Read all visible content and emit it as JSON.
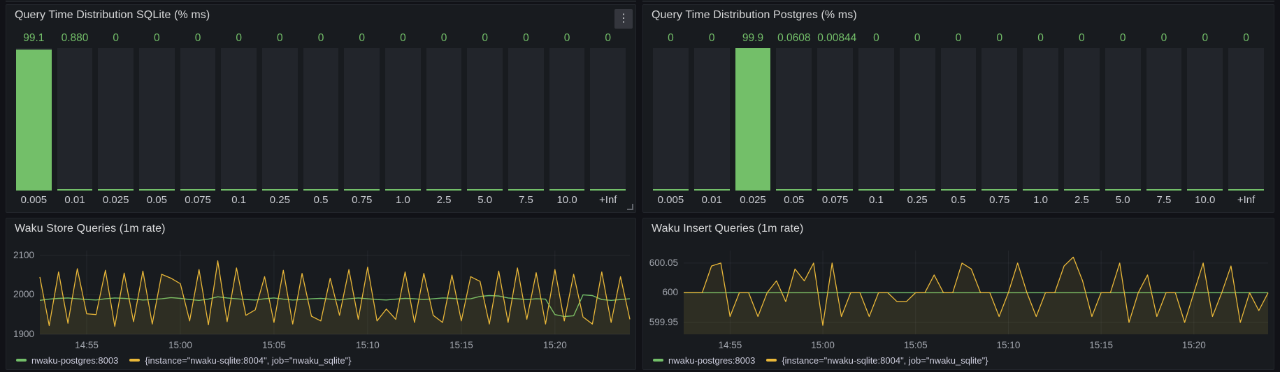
{
  "dashboard": {
    "background": "#111217",
    "panel_background": "#181b1f",
    "accent_green": "#73BF69",
    "accent_yellow": "#EAB839"
  },
  "icons": {
    "panel_menu": "⋮"
  },
  "chart_data": [
    {
      "id": "sqlite-histogram",
      "type": "bar",
      "title": "Query Time Distribution SQLite (% ms)",
      "unit": "%",
      "bar_color": "#73BF69",
      "ylim": [
        0,
        100
      ],
      "categories": [
        "0.005",
        "0.01",
        "0.025",
        "0.05",
        "0.075",
        "0.1",
        "0.25",
        "0.5",
        "0.75",
        "1.0",
        "2.5",
        "5.0",
        "7.5",
        "10.0",
        "+Inf"
      ],
      "values": [
        99.1,
        0.88,
        0,
        0,
        0,
        0,
        0,
        0,
        0,
        0,
        0,
        0,
        0,
        0,
        0
      ],
      "value_labels": [
        "99.1",
        "0.880",
        "0",
        "0",
        "0",
        "0",
        "0",
        "0",
        "0",
        "0",
        "0",
        "0",
        "0",
        "0",
        "0"
      ]
    },
    {
      "id": "postgres-histogram",
      "type": "bar",
      "title": "Query Time Distribution Postgres (% ms)",
      "unit": "%",
      "bar_color": "#73BF69",
      "ylim": [
        0,
        100
      ],
      "categories": [
        "0.005",
        "0.01",
        "0.025",
        "0.05",
        "0.075",
        "0.1",
        "0.25",
        "0.5",
        "0.75",
        "1.0",
        "2.5",
        "5.0",
        "7.5",
        "10.0",
        "+Inf"
      ],
      "values": [
        0,
        0,
        99.9,
        0.0608,
        0.00844,
        0,
        0,
        0,
        0,
        0,
        0,
        0,
        0,
        0,
        0
      ],
      "value_labels": [
        "0",
        "0",
        "99.9",
        "0.0608",
        "0.00844",
        "0",
        "0",
        "0",
        "0",
        "0",
        "0",
        "0",
        "0",
        "0",
        "0"
      ]
    },
    {
      "id": "waku-store-queries",
      "type": "line",
      "title": "Waku Store Queries (1m rate)",
      "grid": true,
      "legend_position": "bottom",
      "ylim": [
        1900,
        2112
      ],
      "y_ticks": [
        {
          "v": 2100,
          "label": "2100"
        },
        {
          "v": 2000,
          "label": "2000"
        },
        {
          "v": 1900,
          "label": "1900"
        }
      ],
      "x_ticks": {
        "indices": [
          5,
          15,
          25,
          35,
          45,
          55
        ],
        "labels": [
          "14:55",
          "15:00",
          "15:05",
          "15:10",
          "15:15",
          "15:20"
        ]
      },
      "series": [
        {
          "name": "nwaku-postgres:8003",
          "color": "#73BF69",
          "line_width": 1.4,
          "fill_opacity": 0.04,
          "values": [
            1986,
            1989,
            1991,
            1992,
            1990,
            1988,
            1987,
            1990,
            1992,
            1991,
            1989,
            1987,
            1988,
            1990,
            1993,
            1991,
            1988,
            1986,
            1989,
            1995,
            1992,
            1990,
            1988,
            1987,
            1990,
            1992,
            1989,
            1987,
            1988,
            1990,
            1991,
            1989,
            1987,
            1990,
            1992,
            1990,
            1988,
            1987,
            1989,
            1991,
            1990,
            1988,
            1990,
            1992,
            1991,
            1989,
            1990,
            1996,
            1998,
            1997,
            1992,
            1990,
            1988,
            1990,
            1989,
            1950,
            1945,
            1947,
            2000,
            1998,
            1988,
            1986,
            1988,
            1990
          ]
        },
        {
          "name": "{instance=\"nwaku-sqlite:8004\", job=\"nwaku_sqlite\"}",
          "color": "#EAB839",
          "line_width": 1.3,
          "fill_opacity": 0.09,
          "values": [
            2045,
            1922,
            2058,
            1928,
            2066,
            1952,
            1950,
            2062,
            1920,
            2055,
            1932,
            2060,
            1926,
            2052,
            2042,
            2028,
            1934,
            2064,
            1924,
            2086,
            1932,
            2068,
            1948,
            1962,
            2046,
            1930,
            2062,
            1926,
            2054,
            1946,
            1934,
            2042,
            1948,
            2064,
            1938,
            2070,
            1934,
            1964,
            1938,
            2058,
            1930,
            2054,
            1948,
            1930,
            2050,
            1934,
            2046,
            2034,
            1926,
            2060,
            1930,
            2068,
            1938,
            2056,
            1926,
            2064,
            1934,
            2052,
            1944,
            1926,
            2058,
            1930,
            2046,
            1938
          ]
        }
      ]
    },
    {
      "id": "waku-insert-queries",
      "type": "line",
      "title": "Waku Insert Queries (1m rate)",
      "grid": true,
      "legend_position": "bottom",
      "ylim": [
        599.93,
        600.071
      ],
      "y_ticks": [
        {
          "v": 600.05,
          "label": "600.05"
        },
        {
          "v": 600,
          "label": "600"
        },
        {
          "v": 599.95,
          "label": "599.95"
        }
      ],
      "x_ticks": {
        "indices": [
          5,
          15,
          25,
          35,
          45,
          55
        ],
        "labels": [
          "14:55",
          "15:00",
          "15:05",
          "15:10",
          "15:15",
          "15:20"
        ]
      },
      "series": [
        {
          "name": "nwaku-postgres:8003",
          "color": "#73BF69",
          "line_width": 1.4,
          "fill_opacity": 0.04,
          "values": [
            600,
            600,
            600,
            600,
            600,
            600,
            600,
            600,
            600,
            600,
            600,
            600,
            600,
            600,
            600,
            600,
            600,
            600,
            600,
            600,
            600,
            600,
            600,
            600,
            600,
            600,
            600,
            600,
            600,
            600,
            600,
            600,
            600,
            600,
            600,
            600,
            600,
            600,
            600,
            600,
            600,
            600,
            600,
            600,
            600,
            600,
            600,
            600,
            600,
            600,
            600,
            600,
            600,
            600,
            600,
            600,
            600,
            600,
            600,
            600,
            600,
            600,
            600,
            600
          ]
        },
        {
          "name": "{instance=\"nwaku-sqlite:8004\", job=\"nwaku_sqlite\"}",
          "color": "#EAB839",
          "line_width": 1.3,
          "fill_opacity": 0.09,
          "values": [
            600,
            600,
            600,
            600.045,
            600.05,
            599.96,
            600,
            600,
            599.96,
            600,
            600.02,
            599.985,
            600.04,
            600.02,
            600.05,
            599.945,
            600.05,
            599.96,
            600,
            600,
            599.96,
            600,
            600,
            599.985,
            599.985,
            600,
            600,
            600.03,
            600,
            600,
            600.05,
            600.04,
            600,
            600,
            599.96,
            600,
            600.05,
            600,
            599.96,
            600,
            600,
            600.045,
            600.06,
            600.02,
            599.96,
            600,
            600,
            600.05,
            599.95,
            600,
            600.03,
            599.96,
            600,
            600,
            599.95,
            600,
            600.05,
            599.96,
            600,
            600.045,
            599.95,
            600,
            599.97,
            600
          ]
        }
      ]
    }
  ]
}
